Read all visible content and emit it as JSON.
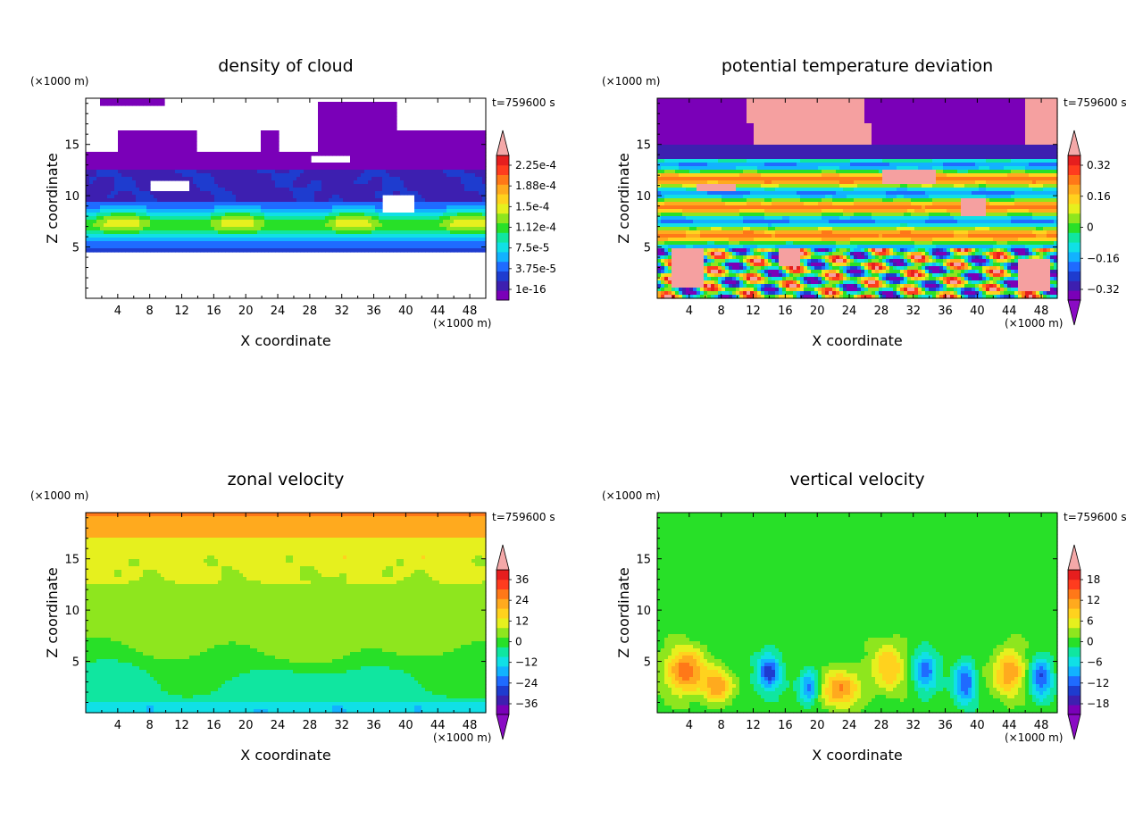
{
  "chart_data": [
    {
      "type": "heatmap",
      "title": "density of cloud",
      "time_label": "t=759600 s",
      "xlabel": "X coordinate",
      "ylabel": "Z coordinate",
      "x_unit": "(×1000 m)",
      "y_unit": "(×1000 m)",
      "xlim": [
        0,
        50
      ],
      "ylim": [
        0,
        19.5
      ],
      "xticks": [
        4,
        8,
        12,
        16,
        20,
        24,
        28,
        32,
        36,
        40,
        44,
        48
      ],
      "yticks": [
        5,
        10,
        15
      ],
      "colorbar_labels": [
        "2.25e-4",
        "1.88e-4",
        "1.5e-4",
        "1.12e-4",
        "7.5e-5",
        "3.75e-5",
        "1e-16"
      ],
      "colorbar_min": 1e-16,
      "colorbar_max": 0.000225,
      "colorbar_has_top_arrow": true,
      "colorbar_has_bottom_arrow": false
    },
    {
      "type": "heatmap",
      "title": "potential temperature deviation",
      "time_label": "t=759600 s",
      "xlabel": "X coordinate",
      "ylabel": "Z coordinate",
      "x_unit": "(×1000 m)",
      "y_unit": "(×1000 m)",
      "xlim": [
        0,
        50
      ],
      "ylim": [
        0,
        19.5
      ],
      "xticks": [
        4,
        8,
        12,
        16,
        20,
        24,
        28,
        32,
        36,
        40,
        44,
        48
      ],
      "yticks": [
        5,
        10,
        15
      ],
      "colorbar_labels": [
        "0.32",
        "0.16",
        "0",
        "−0.16",
        "−0.32"
      ],
      "colorbar_min": -0.32,
      "colorbar_max": 0.32,
      "colorbar_has_top_arrow": true,
      "colorbar_has_bottom_arrow": true
    },
    {
      "type": "heatmap",
      "title": "zonal velocity",
      "time_label": "t=759600 s",
      "xlabel": "X coordinate",
      "ylabel": "Z coordinate",
      "x_unit": "(×1000 m)",
      "y_unit": "(×1000 m)",
      "xlim": [
        0,
        50
      ],
      "ylim": [
        0,
        19.5
      ],
      "xticks": [
        4,
        8,
        12,
        16,
        20,
        24,
        28,
        32,
        36,
        40,
        44,
        48
      ],
      "yticks": [
        5,
        10,
        15
      ],
      "colorbar_labels": [
        "36",
        "24",
        "12",
        "0",
        "−12",
        "−24",
        "−36"
      ],
      "colorbar_min": -36,
      "colorbar_max": 36,
      "colorbar_has_top_arrow": true,
      "colorbar_has_bottom_arrow": true
    },
    {
      "type": "heatmap",
      "title": "vertical velocity",
      "time_label": "t=759600 s",
      "xlabel": "X coordinate",
      "ylabel": "Z coordinate",
      "x_unit": "(×1000 m)",
      "y_unit": "(×1000 m)",
      "xlim": [
        0,
        50
      ],
      "ylim": [
        0,
        19.5
      ],
      "xticks": [
        4,
        8,
        12,
        16,
        20,
        24,
        28,
        32,
        36,
        40,
        44,
        48
      ],
      "yticks": [
        5,
        10,
        15
      ],
      "colorbar_labels": [
        "18",
        "12",
        "6",
        "0",
        "−6",
        "−12",
        "−18"
      ],
      "colorbar_min": -18,
      "colorbar_max": 18,
      "colorbar_has_top_arrow": true,
      "colorbar_has_bottom_arrow": true
    }
  ],
  "colors": {
    "palette": [
      "#7a00b8",
      "#3d1fb0",
      "#1e3ccf",
      "#1f6bff",
      "#12b2ff",
      "#10e0e6",
      "#10e6a0",
      "#28e028",
      "#8ee61e",
      "#e6f01e",
      "#ffd21e",
      "#ffaa1e",
      "#ff7818",
      "#ff3c1e",
      "#e61e1e",
      "#f5a0a0"
    ],
    "high_arrow": "#f4a8a8",
    "low_arrow": "#8a0bc4"
  }
}
